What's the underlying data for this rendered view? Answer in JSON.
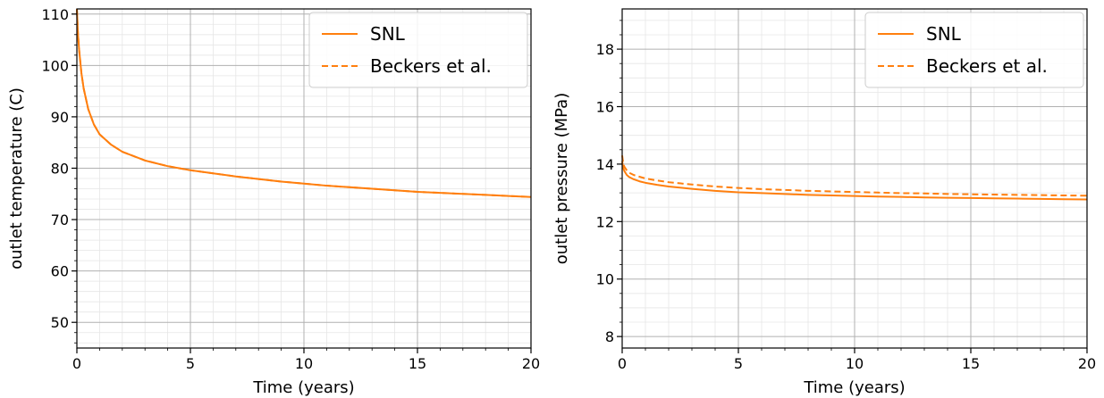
{
  "chart_data": [
    {
      "type": "line",
      "xlabel": "Time (years)",
      "ylabel": "outlet temperature (C)",
      "xlim": [
        0,
        20
      ],
      "ylim": [
        45,
        111
      ],
      "xticks": [
        0,
        5,
        10,
        15,
        20
      ],
      "yticks": [
        50,
        60,
        70,
        80,
        90,
        100,
        110
      ],
      "grid": true,
      "legend_position": "top-right",
      "series": [
        {
          "name": "SNL",
          "style": "solid",
          "color": "#ff7f0e",
          "x": [
            0,
            0.05,
            0.1,
            0.2,
            0.3,
            0.5,
            0.75,
            1,
            1.5,
            2,
            3,
            4,
            5,
            6,
            7,
            8,
            9,
            10,
            11,
            12,
            13,
            14,
            15,
            16,
            17,
            18,
            19,
            20
          ],
          "y": [
            111,
            106,
            103,
            98.5,
            95.5,
            91.5,
            88.5,
            86.6,
            84.6,
            83.2,
            81.5,
            80.4,
            79.6,
            79.0,
            78.4,
            77.9,
            77.4,
            77.0,
            76.6,
            76.3,
            76.0,
            75.7,
            75.4,
            75.2,
            75.0,
            74.8,
            74.6,
            74.4
          ]
        },
        {
          "name": "Beckers et al.",
          "style": "dashed",
          "color": "#ff7f0e",
          "x": [
            0,
            0.05,
            0.1,
            0.2,
            0.3,
            0.5,
            0.75,
            1,
            1.5,
            2,
            3,
            4,
            5,
            6,
            7,
            8,
            9,
            10,
            11,
            12,
            13,
            14,
            15,
            16,
            17,
            18,
            19,
            20
          ],
          "y": [
            111,
            106,
            103,
            98.5,
            95.5,
            91.5,
            88.5,
            86.6,
            84.6,
            83.2,
            81.5,
            80.4,
            79.6,
            79.0,
            78.4,
            77.9,
            77.4,
            77.0,
            76.6,
            76.3,
            76.0,
            75.7,
            75.4,
            75.2,
            75.0,
            74.8,
            74.6,
            74.4
          ]
        }
      ]
    },
    {
      "type": "line",
      "xlabel": "Time (years)",
      "ylabel": "outlet pressure (MPa)",
      "xlim": [
        0,
        20
      ],
      "ylim": [
        7.6,
        19.4
      ],
      "xticks": [
        0,
        5,
        10,
        15,
        20
      ],
      "yticks": [
        8,
        10,
        12,
        14,
        16,
        18
      ],
      "grid": true,
      "legend_position": "top-right",
      "series": [
        {
          "name": "SNL",
          "style": "solid",
          "color": "#ff7f0e",
          "x": [
            0,
            0.05,
            0.1,
            0.2,
            0.3,
            0.5,
            0.75,
            1,
            1.5,
            2,
            3,
            4,
            5,
            6,
            7,
            8,
            9,
            10,
            11,
            12,
            13,
            14,
            15,
            16,
            17,
            18,
            19,
            20
          ],
          "y": [
            14.1,
            13.85,
            13.75,
            13.62,
            13.55,
            13.47,
            13.4,
            13.35,
            13.28,
            13.22,
            13.14,
            13.07,
            13.02,
            12.99,
            12.96,
            12.93,
            12.91,
            12.89,
            12.87,
            12.86,
            12.84,
            12.83,
            12.82,
            12.81,
            12.8,
            12.79,
            12.78,
            12.77
          ]
        },
        {
          "name": "Beckers et al.",
          "style": "dashed",
          "color": "#ff7f0e",
          "x": [
            0,
            0.05,
            0.1,
            0.2,
            0.3,
            0.5,
            0.75,
            1,
            1.5,
            2,
            3,
            4,
            5,
            6,
            7,
            8,
            9,
            10,
            11,
            12,
            13,
            14,
            15,
            16,
            17,
            18,
            19,
            20
          ],
          "y": [
            14.3,
            14.0,
            13.9,
            13.78,
            13.7,
            13.62,
            13.56,
            13.5,
            13.43,
            13.37,
            13.29,
            13.22,
            13.17,
            13.13,
            13.1,
            13.07,
            13.05,
            13.03,
            13.01,
            12.99,
            12.98,
            12.96,
            12.95,
            12.94,
            12.93,
            12.92,
            12.91,
            12.9
          ]
        }
      ]
    }
  ]
}
